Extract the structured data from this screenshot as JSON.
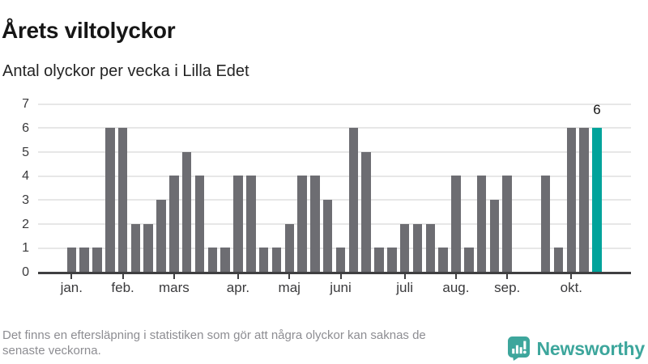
{
  "chart_data": {
    "type": "bar",
    "title": "Årets viltolyckor",
    "subtitle": "Antal olyckor per vecka i Lilla Edet",
    "x_unit": "iso-week",
    "first_week": 1,
    "values": [
      1,
      1,
      1,
      6,
      6,
      2,
      2,
      3,
      4,
      5,
      4,
      1,
      1,
      4,
      4,
      1,
      1,
      2,
      4,
      4,
      3,
      1,
      6,
      5,
      1,
      1,
      2,
      2,
      2,
      1,
      4,
      1,
      4,
      3,
      4,
      0,
      0,
      4,
      1,
      6,
      6,
      6
    ],
    "highlight_week": 42,
    "annotation": {
      "week": 42,
      "label": "6"
    },
    "yticks": [
      0,
      1,
      2,
      3,
      4,
      5,
      6,
      7
    ],
    "ylim": [
      0,
      7
    ],
    "grid": true,
    "month_ticks": [
      {
        "week": 1,
        "label": "jan."
      },
      {
        "week": 5,
        "label": "feb."
      },
      {
        "week": 9,
        "label": "mars"
      },
      {
        "week": 14,
        "label": "apr."
      },
      {
        "week": 18,
        "label": "maj"
      },
      {
        "week": 22,
        "label": "juni"
      },
      {
        "week": 27,
        "label": "juli"
      },
      {
        "week": 31,
        "label": "aug."
      },
      {
        "week": 35,
        "label": "sep."
      },
      {
        "week": 40,
        "label": "okt."
      }
    ],
    "colors": {
      "bar": "#6d6d72",
      "highlight": "#00a39b",
      "grid": "#e7e7e7",
      "axis": "#3f3f41"
    }
  },
  "footer": {
    "note_line1": "Det finns en eftersläpning i statistiken som gör att några olyckor kan saknas de",
    "note_line2": "senaste veckorna.",
    "brand": "Newsworthy"
  }
}
